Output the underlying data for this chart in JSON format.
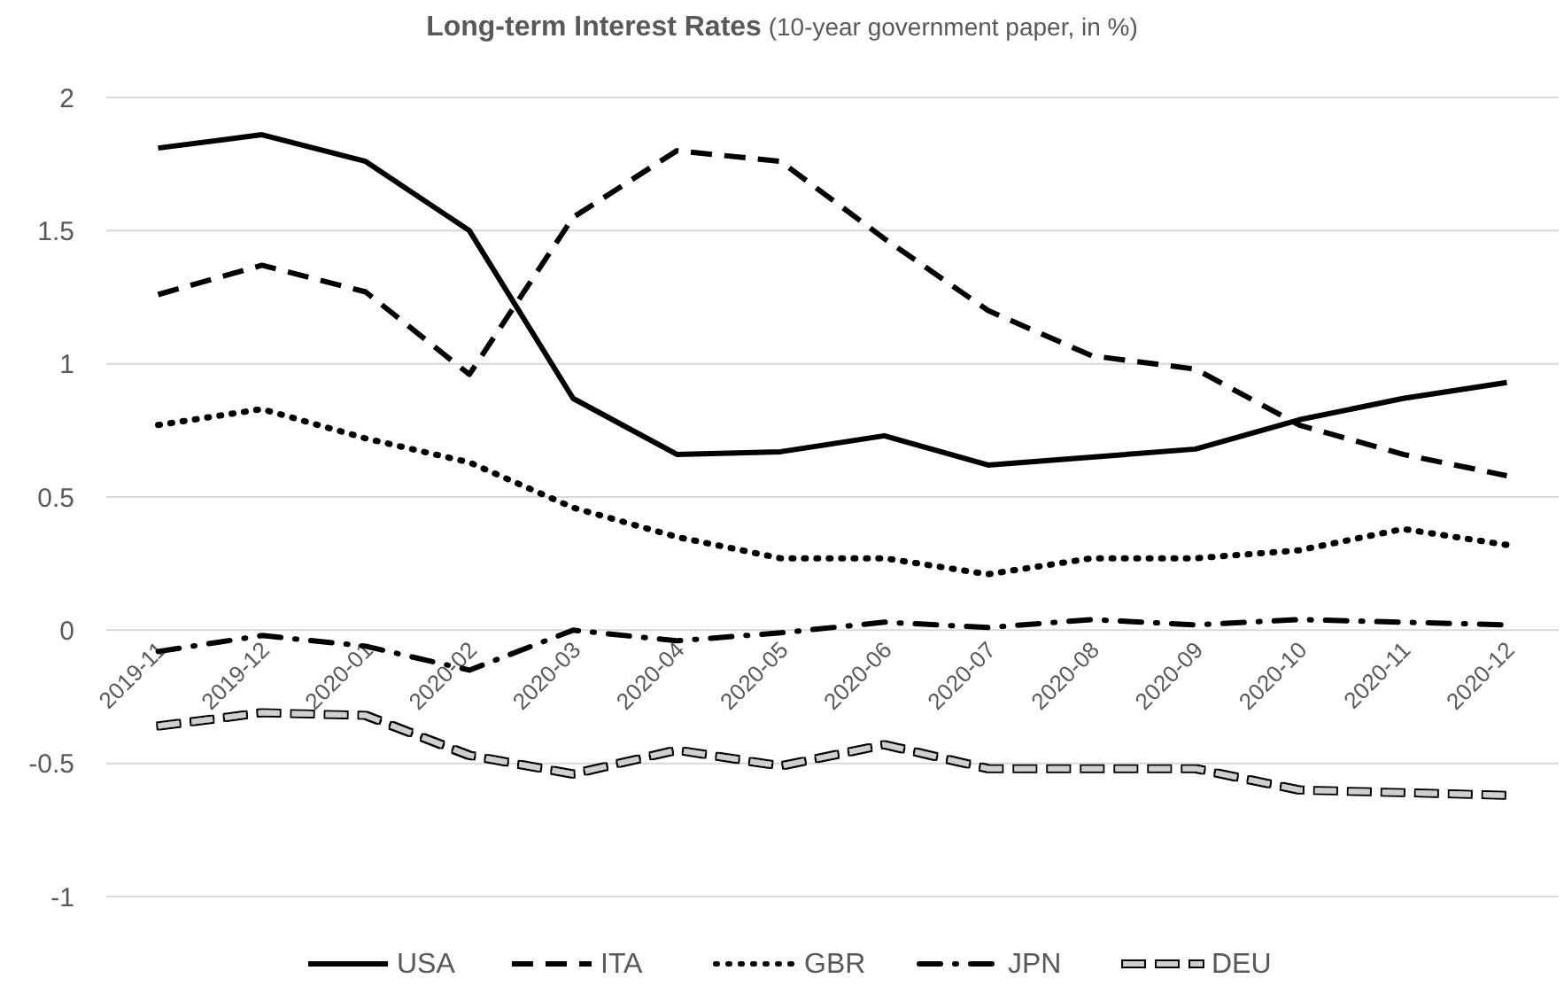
{
  "chart_data": {
    "type": "line",
    "title": "Long-term Interest Rates",
    "subtitle": "(10-year government paper, in %)",
    "categories": [
      "2019-11",
      "2019-12",
      "2020-01",
      "2020-02",
      "2020-03",
      "2020-04",
      "2020-05",
      "2020-06",
      "2020-07",
      "2020-08",
      "2020-09",
      "2020-10",
      "2020-11",
      "2020-12"
    ],
    "series": [
      {
        "name": "USA",
        "color": "#000000",
        "line_style": "solid",
        "values": [
          1.81,
          1.86,
          1.76,
          1.5,
          0.87,
          0.66,
          0.67,
          0.73,
          0.62,
          0.65,
          0.68,
          0.79,
          0.87,
          0.93
        ]
      },
      {
        "name": "ITA",
        "color": "#000000",
        "line_style": "dashed",
        "values": [
          1.26,
          1.37,
          1.27,
          0.96,
          1.55,
          1.8,
          1.76,
          1.47,
          1.2,
          1.03,
          0.98,
          0.77,
          0.66,
          0.58
        ]
      },
      {
        "name": "GBR",
        "color": "#000000",
        "line_style": "dotted",
        "values": [
          0.77,
          0.83,
          0.72,
          0.63,
          0.46,
          0.35,
          0.27,
          0.27,
          0.21,
          0.27,
          0.27,
          0.3,
          0.38,
          0.32
        ]
      },
      {
        "name": "JPN",
        "color": "#000000",
        "line_style": "dashdot",
        "values": [
          -0.08,
          -0.02,
          -0.06,
          -0.15,
          0.0,
          -0.04,
          -0.01,
          0.03,
          0.01,
          0.04,
          0.02,
          0.04,
          0.03,
          0.02
        ]
      },
      {
        "name": "DEU",
        "color": "#d0d0d0",
        "line_style": "dashed",
        "values": [
          -0.36,
          -0.31,
          -0.32,
          -0.47,
          -0.54,
          -0.45,
          -0.51,
          -0.43,
          -0.52,
          -0.52,
          -0.52,
          -0.6,
          -0.61,
          -0.62
        ]
      }
    ],
    "ylim": [
      -1,
      2
    ],
    "yticks": [
      -1,
      -0.5,
      0,
      0.5,
      1,
      1.5,
      2
    ],
    "grid": "y",
    "legend": "bottom",
    "marker": "none"
  }
}
